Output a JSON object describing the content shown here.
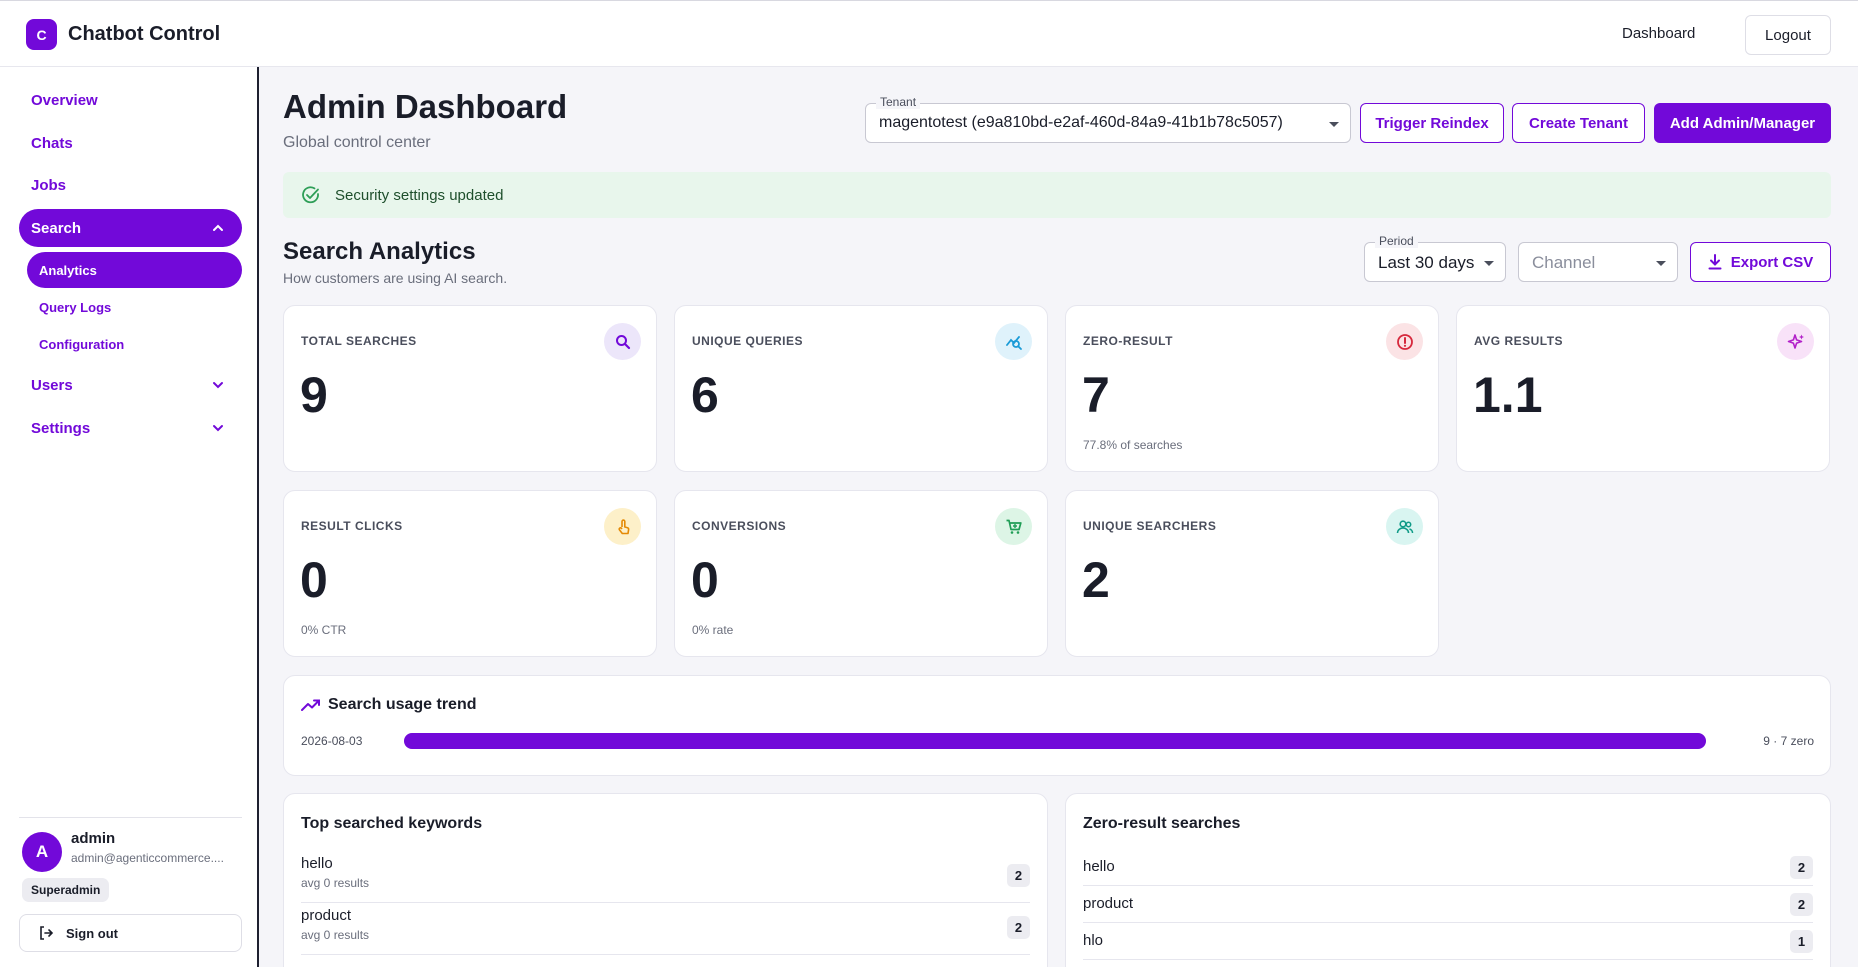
{
  "app": {
    "logo_letter": "C",
    "name": "Chatbot Control"
  },
  "topnav": {
    "dashboard": "Dashboard",
    "logout": "Logout"
  },
  "sidebar": {
    "items": [
      {
        "label": "Overview"
      },
      {
        "label": "Chats"
      },
      {
        "label": "Jobs"
      },
      {
        "label": "Search"
      },
      {
        "label": "Users"
      },
      {
        "label": "Settings"
      }
    ],
    "search_sub": [
      {
        "label": "Analytics"
      },
      {
        "label": "Query Logs"
      },
      {
        "label": "Configuration"
      }
    ],
    "user": {
      "initial": "A",
      "name": "admin",
      "email": "admin@agenticcommerce....",
      "role": "Superadmin"
    },
    "signout": "Sign out"
  },
  "header": {
    "title": "Admin Dashboard",
    "subtitle": "Global control center",
    "tenant_label": "Tenant",
    "tenant_value": "magentotest (e9a810bd-e2af-460d-84a9-41b1b78c5057)",
    "trigger_reindex": "Trigger Reindex",
    "create_tenant": "Create Tenant",
    "add_admin": "Add Admin/Manager"
  },
  "alert": {
    "message": "Security settings updated"
  },
  "analytics": {
    "title": "Search Analytics",
    "subtitle": "How customers are using AI search.",
    "period_label": "Period",
    "period_value": "Last 30 days",
    "channel_placeholder": "Channel",
    "export": "Export CSV",
    "colors": {
      "accent": "#7209d9",
      "alert_bg": "#e8f6ec",
      "success": "#2e9e57"
    }
  },
  "stats": [
    {
      "label": "TOTAL SEARCHES",
      "value": "9",
      "sub": "",
      "icon": "search-icon"
    },
    {
      "label": "UNIQUE QUERIES",
      "value": "6",
      "sub": "",
      "icon": "query-stats-icon"
    },
    {
      "label": "ZERO-RESULT",
      "value": "7",
      "sub": "77.8% of searches",
      "icon": "error-icon"
    },
    {
      "label": "AVG RESULTS",
      "value": "1.1",
      "sub": "",
      "icon": "sparkle-icon"
    },
    {
      "label": "RESULT CLICKS",
      "value": "0",
      "sub": "0% CTR",
      "icon": "touch-icon"
    },
    {
      "label": "CONVERSIONS",
      "value": "0",
      "sub": "0% rate",
      "icon": "cart-icon"
    },
    {
      "label": "UNIQUE SEARCHERS",
      "value": "2",
      "sub": "",
      "icon": "people-icon"
    }
  ],
  "trend": {
    "title": "Search usage trend",
    "rows": [
      {
        "date": "2026-08-03",
        "count_text": "9 · 7 zero",
        "fraction": 1.0
      }
    ]
  },
  "top_keywords": {
    "title": "Top searched keywords",
    "rows": [
      {
        "term": "hello",
        "sub": "avg 0 results",
        "count": "2"
      },
      {
        "term": "product",
        "sub": "avg 0 results",
        "count": "2"
      }
    ]
  },
  "zero_results": {
    "title": "Zero-result searches",
    "rows": [
      {
        "term": "hello",
        "count": "2"
      },
      {
        "term": "product",
        "count": "2"
      },
      {
        "term": "hlo",
        "count": "1"
      }
    ]
  }
}
